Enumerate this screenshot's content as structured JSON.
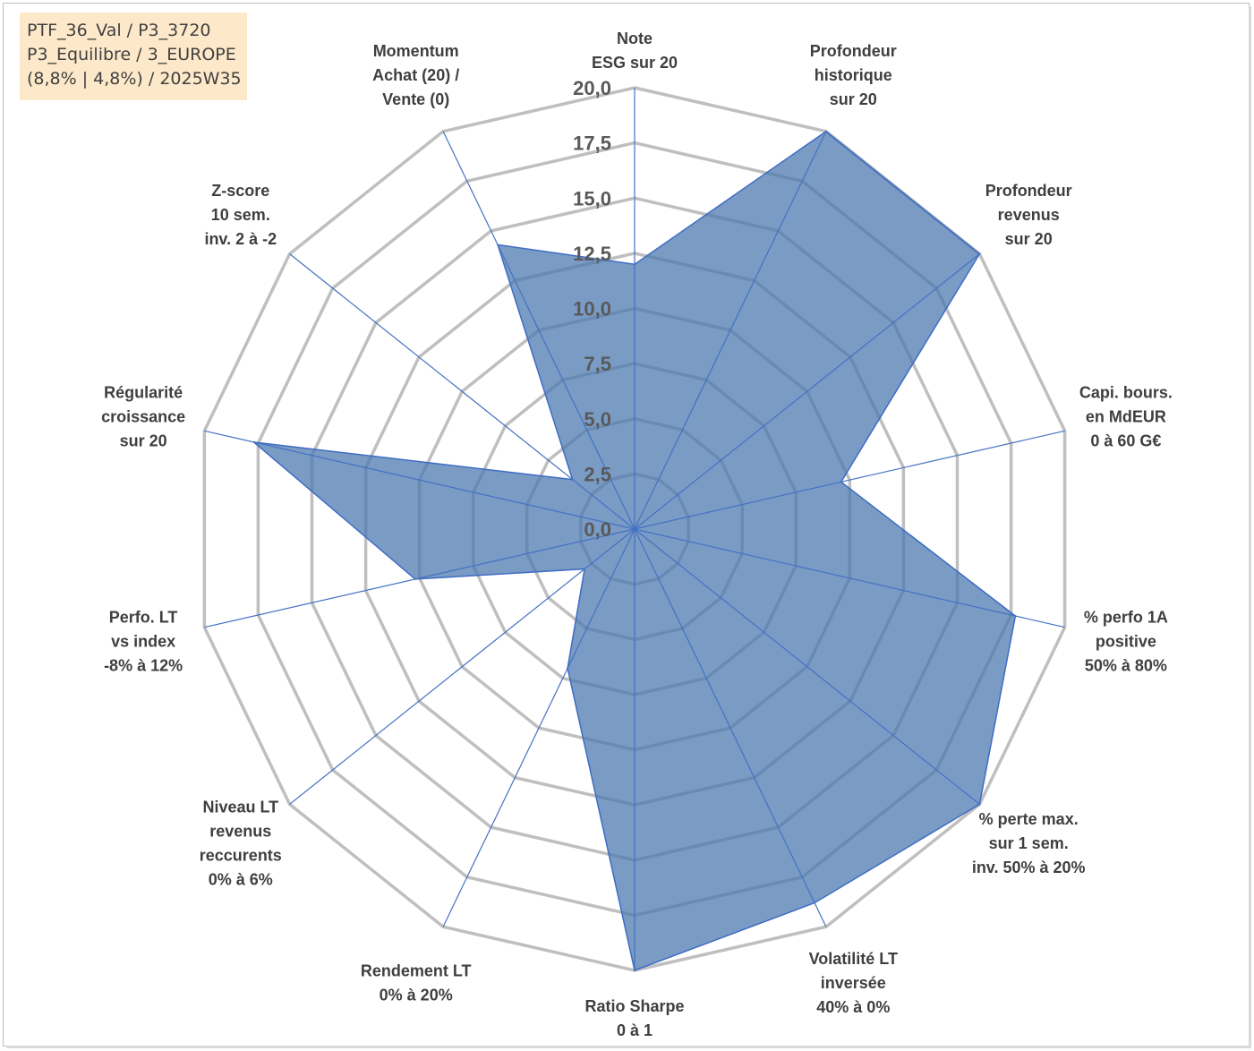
{
  "info_box": {
    "line1": "PTF_36_Val / P3_3720",
    "line2": "P3_Equilibre / 3_EUROPE",
    "line3": "(8,8% | 4,8%) / 2025W35"
  },
  "colors": {
    "grid": "#bfbfbf",
    "spoke": "#4472c4",
    "fill": "#4a78af",
    "stroke": "#3f6cc4",
    "info_bg": "#fde9c9"
  },
  "chart_data": {
    "type": "radar",
    "title": "",
    "rlim": [
      0,
      20
    ],
    "ticks": [
      "0,0",
      "2,5",
      "5,0",
      "7,5",
      "10,0",
      "12,5",
      "15,0",
      "17,5",
      "20,0"
    ],
    "axes": [
      [
        "Note",
        "ESG sur 20"
      ],
      [
        "Profondeur",
        "historique",
        "sur 20"
      ],
      [
        "Profondeur",
        "revenus",
        "sur 20"
      ],
      [
        "Capi. bours.",
        "en MdEUR",
        "0 à 60 G€"
      ],
      [
        "% perfo 1A",
        "positive",
        "50% à 80%"
      ],
      [
        "% perte max.",
        "sur 1 sem.",
        "inv. 50% à 20%"
      ],
      [
        "Volatilité LT",
        "inversée",
        "40% à 0%"
      ],
      [
        "Ratio Sharpe",
        "0 à 1"
      ],
      [
        "Rendement LT",
        "0% à 20%"
      ],
      [
        "Niveau LT",
        "revenus",
        "reccurents",
        "0% à 6%"
      ],
      [
        "Perfo. LT",
        "vs index",
        "-8% à 12%"
      ],
      [
        "Régularité",
        "croissance",
        "sur 20"
      ],
      [
        "Z-score",
        "10 sem.",
        "inv. 2 à -2"
      ],
      [
        "Momentum",
        "Achat (20) /",
        "Vente (0)"
      ]
    ],
    "series": [
      {
        "values": [
          12.0,
          20.0,
          20.0,
          9.6,
          17.7,
          20.0,
          18.8,
          20.0,
          7.0,
          2.9,
          10.2,
          17.7,
          3.6,
          14.3
        ]
      }
    ],
    "grid": true,
    "legend": "none"
  }
}
